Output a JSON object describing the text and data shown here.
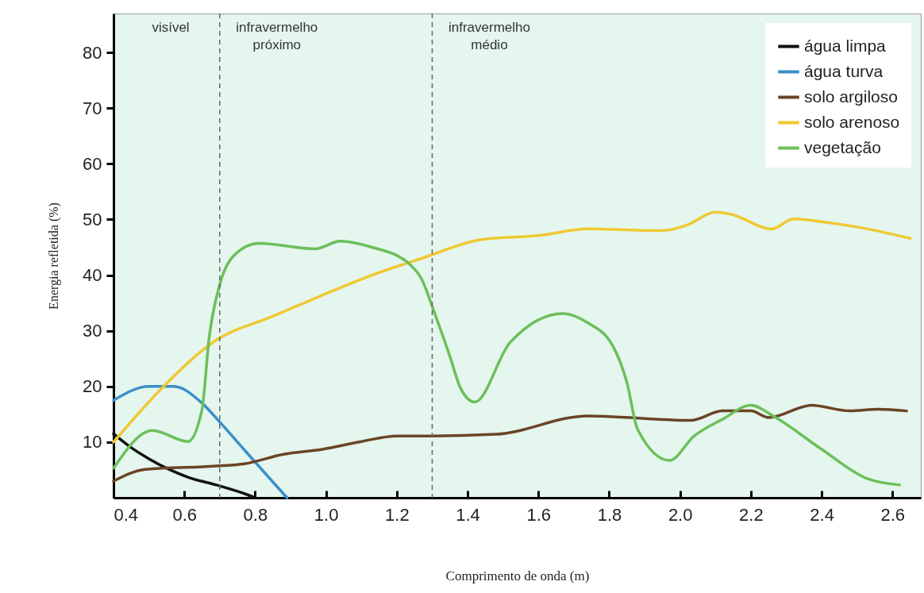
{
  "chart_data": {
    "type": "line",
    "xlabel": "Comprimento de onda (m)",
    "ylabel": "Energia refletida (%)",
    "xlim": [
      0.4,
      2.68
    ],
    "ylim": [
      0,
      87
    ],
    "xticks": [
      0.4,
      0.6,
      0.8,
      {
        "value": 1,
        "label": "1.0"
      },
      1.2,
      1.4,
      1.6,
      1.8,
      {
        "value": 2,
        "label": "2.0"
      },
      2.2,
      2.4,
      2.6
    ],
    "yticks": [
      10,
      20,
      30,
      40,
      50,
      60,
      70,
      80
    ],
    "legend": "top right",
    "grid": false,
    "ref_lines": [
      {
        "axis": "x",
        "value": 0.7,
        "color": "#666666",
        "line_style": "dashed"
      },
      {
        "axis": "x",
        "value": 1.3,
        "color": "#666666",
        "line_style": "dashed"
      }
    ],
    "annotations": [
      "visível",
      "infravermelho próximo",
      "infravermelho médio"
    ],
    "series": [
      {
        "name": "água limpa",
        "color": "#111111",
        "x": [
          0.4,
          0.45,
          0.5,
          0.56,
          0.61,
          0.69,
          0.78,
          0.8
        ],
        "values": [
          11.5,
          9,
          7,
          5,
          3.7,
          2.3,
          0.5,
          0
        ]
      },
      {
        "name": "água turva",
        "color": "#3a8fc8",
        "x": [
          0.4,
          0.5,
          0.57,
          0.65,
          0.7,
          0.76,
          0.8,
          0.89
        ],
        "values": [
          17.5,
          20,
          20,
          17,
          13.6,
          9.3,
          6.4,
          0
        ]
      },
      {
        "name": "solo argiloso",
        "color": "#6b4424",
        "x": [
          0.4,
          0.49,
          0.69,
          0.77,
          0.88,
          0.99,
          1.1,
          1.2,
          1.3,
          1.48,
          1.74,
          2.03,
          2.12,
          2.2,
          2.25,
          2.37,
          2.48,
          2.56,
          2.64
        ],
        "values": [
          3,
          5.1,
          5.7,
          6.1,
          7.8,
          8.7,
          10.1,
          11.1,
          11.1,
          11.4,
          14.7,
          13.9,
          15.6,
          15.6,
          14.4,
          16.6,
          15.6,
          15.9,
          15.6
        ]
      },
      {
        "name": "solo arenoso",
        "color": "#f0c832",
        "x": [
          0.4,
          0.54,
          0.69,
          0.85,
          0.99,
          1.13,
          1.27,
          1.44,
          1.6,
          1.74,
          1.95,
          2.02,
          2.1,
          2.14,
          2.26,
          2.32,
          2.42,
          2.53,
          2.65
        ],
        "values": [
          10,
          19.9,
          28.3,
          32.6,
          36.4,
          40,
          43,
          46.4,
          47.1,
          48.3,
          48,
          49,
          51.3,
          51,
          48.3,
          50.1,
          49.4,
          48.3,
          46.6
        ]
      },
      {
        "name": "vegetação",
        "color": "#6cbf5a",
        "x": [
          0.4,
          0.51,
          0.61,
          0.65,
          0.67,
          0.7,
          0.74,
          0.81,
          0.97,
          1.04,
          1.13,
          1.23,
          1.27,
          1.31,
          1.35,
          1.38,
          1.42,
          1.52,
          1.67,
          1.74,
          1.81,
          1.85,
          1.88,
          1.97,
          2.04,
          2.12,
          2.2,
          2.27,
          2.4,
          2.53,
          2.62
        ],
        "values": [
          5.3,
          12.1,
          10.1,
          15.9,
          28.7,
          38.3,
          43.5,
          45.7,
          44.7,
          46.1,
          45,
          42.3,
          39.3,
          32.6,
          25.4,
          19.7,
          17.2,
          27.9,
          33.1,
          31.4,
          27.3,
          20.7,
          12.3,
          6.7,
          11.1,
          14.1,
          16.6,
          14.4,
          8.7,
          3.4,
          2.3
        ]
      }
    ]
  }
}
